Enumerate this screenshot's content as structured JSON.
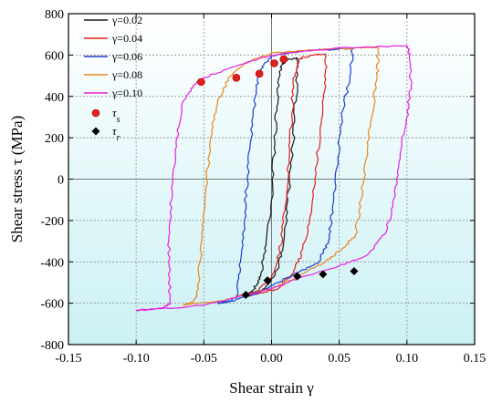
{
  "chart_data": {
    "type": "line",
    "xlabel": "Shear strain  γ",
    "ylabel": "Shear stress τ (MPa)",
    "xlim": [
      -0.15,
      0.15
    ],
    "ylim": [
      -800,
      800
    ],
    "xticks": [
      "-0.15",
      "-0.10",
      "-0.05",
      "0.00",
      "0.05",
      "0.10",
      "0.15"
    ],
    "yticks": [
      "-800",
      "-600",
      "-400",
      "-200",
      "0",
      "200",
      "400",
      "600",
      "800"
    ],
    "grid": true,
    "legend_position": "top-left",
    "background_gradient": [
      "#ffffff",
      "#ccf1f5"
    ],
    "series": [
      {
        "name": "γ=0.02",
        "color": "#1a1a1a",
        "loop": [
          [
            -0.02,
            -560
          ],
          [
            -0.014,
            -540
          ],
          [
            -0.008,
            -470
          ],
          [
            -0.004,
            -300
          ],
          [
            0.0,
            -100
          ],
          [
            0.002,
            150
          ],
          [
            0.004,
            350
          ],
          [
            0.006,
            500
          ],
          [
            0.008,
            560
          ],
          [
            0.012,
            580
          ],
          [
            0.019,
            585
          ],
          [
            0.019,
            500
          ],
          [
            0.017,
            300
          ],
          [
            0.015,
            100
          ],
          [
            0.012,
            -100
          ],
          [
            0.009,
            -300
          ],
          [
            0.004,
            -440
          ],
          [
            -0.005,
            -530
          ],
          [
            -0.02,
            -560
          ]
        ]
      },
      {
        "name": "γ=0.04",
        "color": "#e02020",
        "loop": [
          [
            -0.02,
            -565
          ],
          [
            -0.01,
            -540
          ],
          [
            0.0,
            -470
          ],
          [
            0.006,
            -350
          ],
          [
            0.01,
            -150
          ],
          [
            0.013,
            100
          ],
          [
            0.015,
            300
          ],
          [
            0.016,
            480
          ],
          [
            0.02,
            580
          ],
          [
            0.03,
            600
          ],
          [
            0.04,
            605
          ],
          [
            0.04,
            450
          ],
          [
            0.036,
            250
          ],
          [
            0.032,
            0
          ],
          [
            0.028,
            -200
          ],
          [
            0.022,
            -370
          ],
          [
            0.015,
            -460
          ],
          [
            0.005,
            -530
          ],
          [
            -0.01,
            -555
          ],
          [
            -0.02,
            -565
          ]
        ]
      },
      {
        "name": "γ=0.06",
        "color": "#1a3fcc",
        "loop": [
          [
            -0.04,
            -600
          ],
          [
            -0.03,
            -590
          ],
          [
            -0.025,
            -560
          ],
          [
            -0.023,
            -400
          ],
          [
            -0.02,
            -200
          ],
          [
            -0.018,
            0
          ],
          [
            -0.015,
            200
          ],
          [
            -0.012,
            400
          ],
          [
            -0.008,
            530
          ],
          [
            0.0,
            595
          ],
          [
            0.02,
            620
          ],
          [
            0.038,
            625
          ],
          [
            0.06,
            630
          ],
          [
            0.058,
            500
          ],
          [
            0.052,
            300
          ],
          [
            0.048,
            50
          ],
          [
            0.045,
            -150
          ],
          [
            0.042,
            -300
          ],
          [
            0.035,
            -400
          ],
          [
            0.02,
            -450
          ],
          [
            0.005,
            -500
          ],
          [
            -0.01,
            -550
          ],
          [
            -0.03,
            -590
          ],
          [
            -0.04,
            -600
          ]
        ]
      },
      {
        "name": "γ=0.08",
        "color": "#e8871e",
        "loop": [
          [
            -0.065,
            -610
          ],
          [
            -0.06,
            -600
          ],
          [
            -0.055,
            -560
          ],
          [
            -0.053,
            -400
          ],
          [
            -0.05,
            -200
          ],
          [
            -0.048,
            0
          ],
          [
            -0.045,
            200
          ],
          [
            -0.04,
            380
          ],
          [
            -0.03,
            500
          ],
          [
            -0.02,
            560
          ],
          [
            0.0,
            610
          ],
          [
            0.04,
            630
          ],
          [
            0.079,
            635
          ],
          [
            0.078,
            500
          ],
          [
            0.074,
            300
          ],
          [
            0.07,
            100
          ],
          [
            0.066,
            -100
          ],
          [
            0.062,
            -270
          ],
          [
            0.05,
            -350
          ],
          [
            0.04,
            -400
          ],
          [
            0.02,
            -470
          ],
          [
            0.0,
            -530
          ],
          [
            -0.04,
            -590
          ],
          [
            -0.065,
            -610
          ]
        ]
      },
      {
        "name": "γ=0.10",
        "color": "#e81ee0",
        "loop": [
          [
            -0.1,
            -635
          ],
          [
            -0.08,
            -625
          ],
          [
            -0.075,
            -600
          ],
          [
            -0.076,
            -400
          ],
          [
            -0.075,
            -200
          ],
          [
            -0.073,
            0
          ],
          [
            -0.07,
            200
          ],
          [
            -0.065,
            380
          ],
          [
            -0.058,
            450
          ],
          [
            -0.05,
            490
          ],
          [
            -0.03,
            540
          ],
          [
            -0.01,
            580
          ],
          [
            0.01,
            610
          ],
          [
            0.05,
            635
          ],
          [
            0.1,
            645
          ],
          [
            0.102,
            600
          ],
          [
            0.103,
            450
          ],
          [
            0.1,
            300
          ],
          [
            0.095,
            100
          ],
          [
            0.09,
            -100
          ],
          [
            0.085,
            -250
          ],
          [
            0.07,
            -370
          ],
          [
            0.05,
            -420
          ],
          [
            0.02,
            -480
          ],
          [
            0.0,
            -530
          ],
          [
            -0.05,
            -610
          ],
          [
            -0.1,
            -635
          ]
        ]
      }
    ],
    "markers": [
      {
        "name": "τs",
        "label_sym": "τ",
        "label_sub": "s",
        "shape": "circle",
        "color": "#e02020",
        "points": [
          [
            -0.052,
            470
          ],
          [
            -0.026,
            490
          ],
          [
            -0.009,
            510
          ],
          [
            0.002,
            560
          ],
          [
            0.009,
            580
          ]
        ]
      },
      {
        "name": "τr",
        "label_sym": "τ",
        "label_sub": "r",
        "shape": "diamond",
        "color": "#000000",
        "points": [
          [
            -0.019,
            -560
          ],
          [
            -0.003,
            -490
          ],
          [
            0.019,
            -470
          ],
          [
            0.038,
            -460
          ],
          [
            0.061,
            -445
          ]
        ]
      }
    ]
  }
}
